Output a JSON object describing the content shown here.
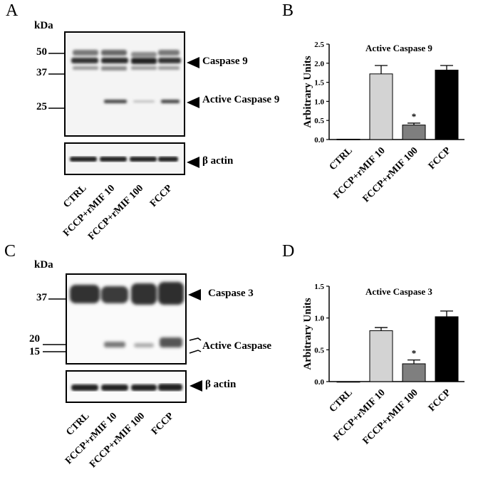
{
  "panels": {
    "A": "A",
    "B": "B",
    "C": "C",
    "D": "D"
  },
  "blots": [
    {
      "kda_label": "kDa",
      "markers": [
        "50",
        "37",
        "25"
      ],
      "bands": {
        "upper": "Caspase 9",
        "lower": "Active Caspase 9",
        "loading": "β actin"
      },
      "lanes": [
        "CTRL",
        "FCCP+rMIF 10",
        "FCCP+rMIF 100",
        "FCCP"
      ]
    },
    {
      "kda_label": "kDa",
      "markers": [
        "37",
        "20",
        "15"
      ],
      "bands": {
        "upper": "Caspase 3",
        "lower": "Active Caspase",
        "loading": "β actin"
      },
      "lanes": [
        "CTRL",
        "FCCP+rMIF 10",
        "FCCP+rMIF 100",
        "FCCP"
      ]
    }
  ],
  "chart_data": [
    {
      "type": "bar",
      "title": "Active Caspase 9",
      "ylabel": "Arbitrary Units",
      "categories": [
        "CTRL",
        "FCCP+rMIF 10",
        "FCCP+rMIF 100",
        "FCCP"
      ],
      "values": [
        0.01,
        1.72,
        0.38,
        1.82
      ],
      "errors": [
        0.0,
        0.22,
        0.05,
        0.12
      ],
      "significance": [
        "",
        "",
        "*",
        ""
      ],
      "colors": [
        "#ffffff",
        "#d3d3d3",
        "#7f7f7f",
        "#000000"
      ],
      "ylim": [
        0,
        2.5
      ],
      "yticks": [
        "0.0",
        "0.5",
        "1.0",
        "1.5",
        "2.0",
        "2.5"
      ]
    },
    {
      "type": "bar",
      "title": "Active Caspase 3",
      "ylabel": "Arbitrary Units",
      "categories": [
        "CTRL",
        "FCCP+rMIF 10",
        "FCCP+rMIF 100",
        "FCCP"
      ],
      "values": [
        0.0,
        0.8,
        0.28,
        1.02
      ],
      "errors": [
        0.0,
        0.05,
        0.06,
        0.09
      ],
      "significance": [
        "",
        "",
        "*",
        ""
      ],
      "colors": [
        "#ffffff",
        "#d3d3d3",
        "#7f7f7f",
        "#000000"
      ],
      "ylim": [
        0,
        1.5
      ],
      "yticks": [
        "0.0",
        "0.5",
        "1.0",
        "1.5"
      ]
    }
  ]
}
